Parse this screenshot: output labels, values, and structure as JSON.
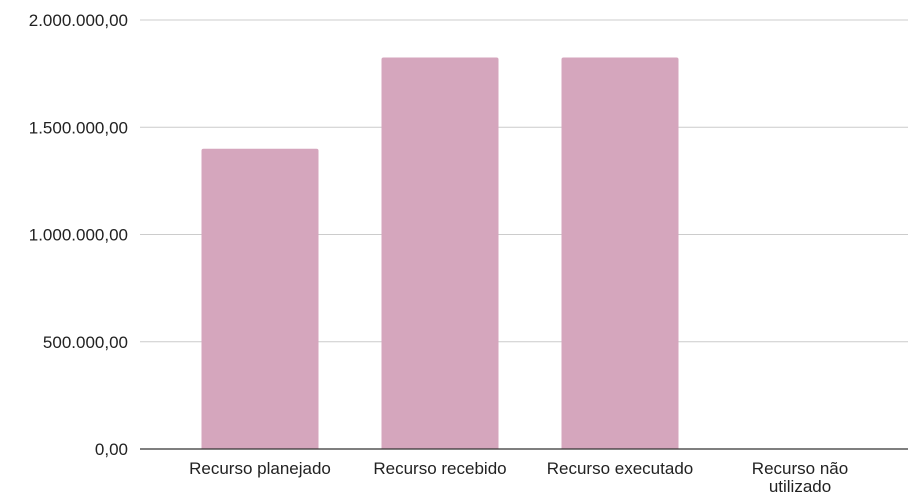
{
  "chart_data": {
    "type": "bar",
    "categories": [
      "Recurso planejado",
      "Recurso recebido",
      "Recurso executado",
      "Recurso não utilizado"
    ],
    "values": [
      1400000,
      1825000,
      1825000,
      0
    ],
    "ylim": [
      0,
      2000000
    ],
    "yticks": [
      0,
      500000,
      1000000,
      1500000,
      2000000
    ],
    "ytick_labels": [
      "0,00",
      "500.000,00",
      "1.000.000,00",
      "1.500.000,00",
      "2.000.000,00"
    ],
    "bar_color": "#d5a6bd",
    "grid": true,
    "legend": "none",
    "title": "",
    "xlabel": "",
    "ylabel": ""
  }
}
